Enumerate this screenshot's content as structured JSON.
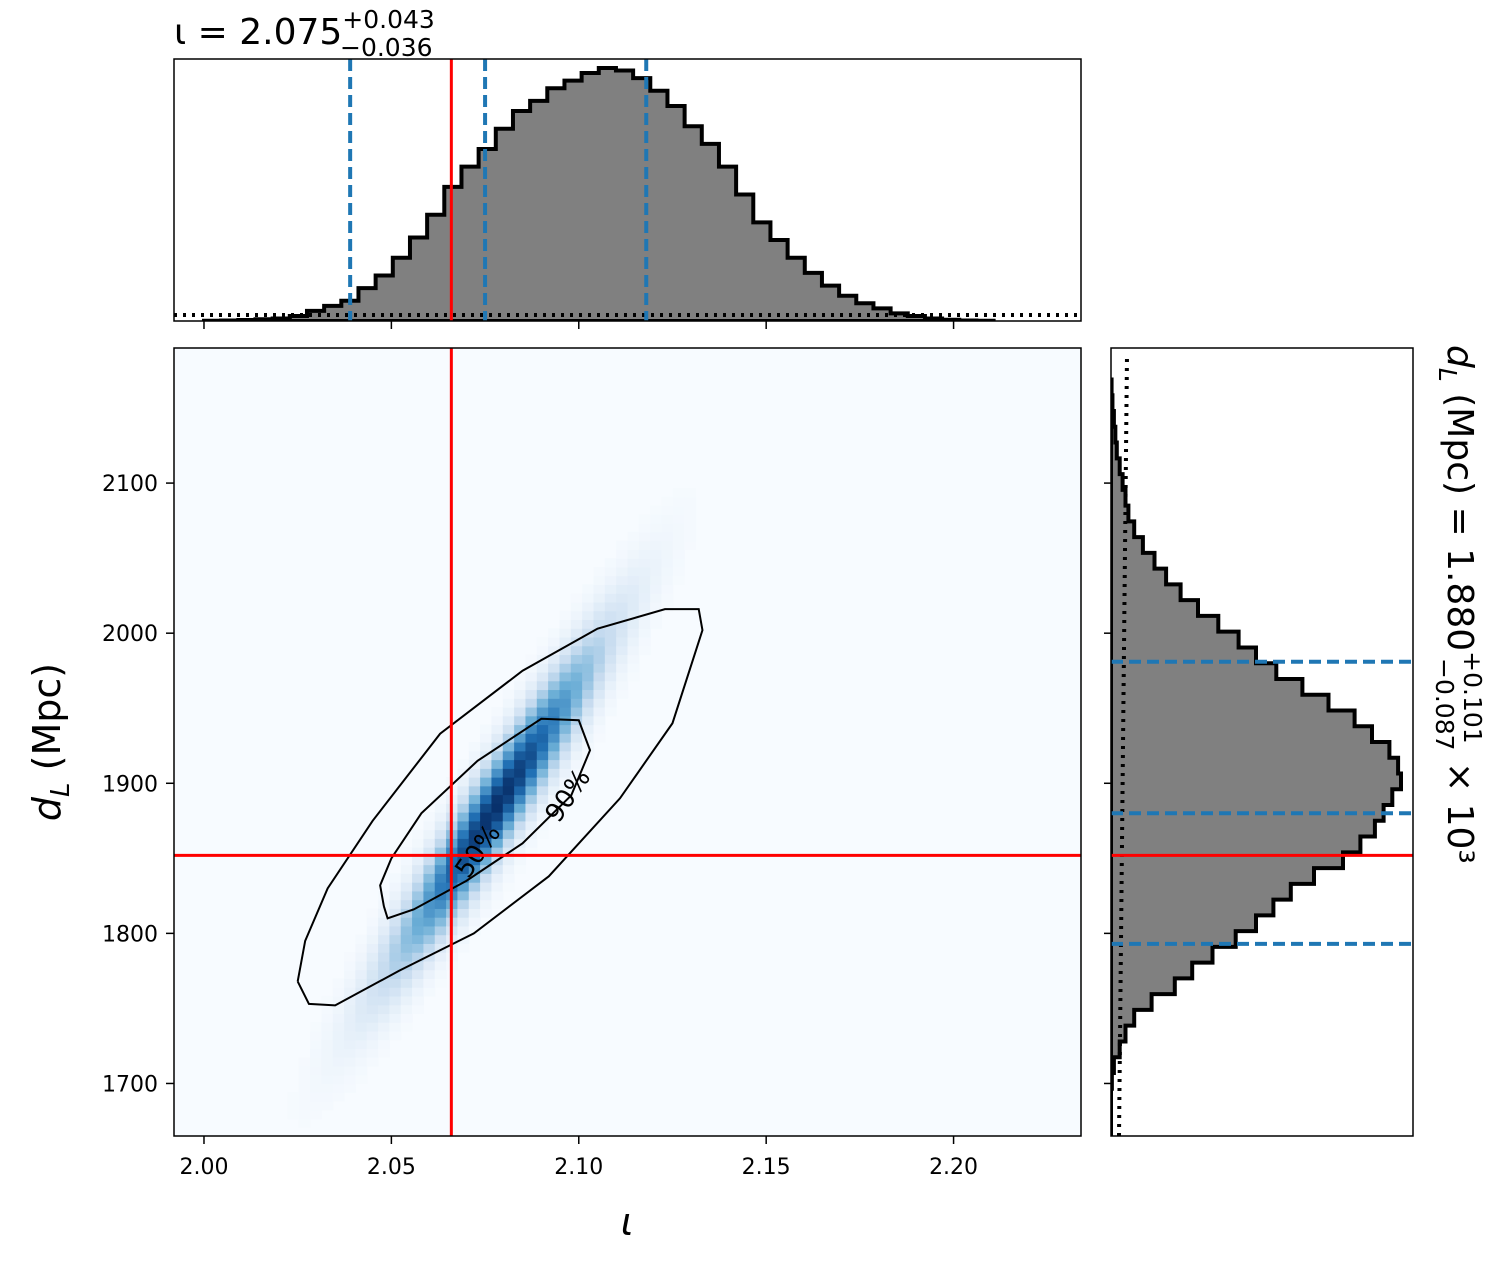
{
  "chart_data": [
    {
      "panel": "top-marginal",
      "type": "histogram",
      "title": {
        "base": "ι = 2.075",
        "sup": "+0.043",
        "sub": "−0.036"
      },
      "xlim": [
        1.992,
        2.234
      ],
      "xticks": [
        2.0,
        2.05,
        2.1,
        2.15,
        2.2
      ],
      "bins_start": 2.0,
      "bin_width": 0.00458,
      "density": [
        0.1,
        0.2,
        0.4,
        0.7,
        1,
        2,
        4,
        6,
        8,
        13,
        18,
        25,
        33,
        42,
        53,
        61,
        68,
        76,
        83,
        87,
        92,
        95,
        98,
        100,
        99,
        96,
        91,
        85,
        77,
        70,
        61,
        50,
        39,
        32,
        25,
        19,
        14,
        10,
        7,
        5,
        3,
        2,
        1,
        0.5,
        0.2,
        0.1
      ],
      "prior_level": 2.5,
      "quantile_lines": [
        2.039,
        2.075,
        2.118
      ],
      "injection": 2.066
    },
    {
      "panel": "joint",
      "type": "heatmap",
      "xlabel": "ι",
      "ylabel": "d_L (Mpc)",
      "xlim": [
        1.992,
        2.234
      ],
      "ylim": [
        1665,
        2190
      ],
      "xticks": [
        "2.00",
        "2.05",
        "2.10",
        "2.15",
        "2.20"
      ],
      "yticks": [
        "1700",
        "1800",
        "1900",
        "2000",
        "2100"
      ],
      "density": {
        "mean": [
          2.078,
          1885
        ],
        "sd": [
          0.018,
          70
        ],
        "rho": 0.95
      },
      "contours": [
        {
          "label": "50%",
          "points": [
            [
              2.048,
              1818
            ],
            [
              2.049,
              1810
            ],
            [
              2.056,
              1816
            ],
            [
              2.07,
              1835
            ],
            [
              2.085,
              1860
            ],
            [
              2.098,
              1892
            ],
            [
              2.103,
              1922
            ],
            [
              2.1,
              1942
            ],
            [
              2.09,
              1943
            ],
            [
              2.073,
              1915
            ],
            [
              2.058,
              1880
            ],
            [
              2.05,
              1850
            ],
            [
              2.047,
              1832
            ],
            [
              2.048,
              1818
            ]
          ]
        },
        {
          "label": "90%",
          "points": [
            [
              2.025,
              1768
            ],
            [
              2.028,
              1753
            ],
            [
              2.035,
              1752
            ],
            [
              2.052,
              1775
            ],
            [
              2.072,
              1800
            ],
            [
              2.092,
              1838
            ],
            [
              2.111,
              1890
            ],
            [
              2.125,
              1940
            ],
            [
              2.133,
              2002
            ],
            [
              2.132,
              2016
            ],
            [
              2.123,
              2016
            ],
            [
              2.105,
              2003
            ],
            [
              2.085,
              1975
            ],
            [
              2.063,
              1933
            ],
            [
              2.045,
              1875
            ],
            [
              2.033,
              1830
            ],
            [
              2.027,
              1795
            ],
            [
              2.025,
              1768
            ]
          ]
        }
      ],
      "contour_labels": [
        {
          "text": "50%",
          "x": 2.073,
          "y": 1855,
          "angle": -55
        },
        {
          "text": "90%",
          "x": 2.097,
          "y": 1892,
          "angle": -55
        }
      ],
      "injection": {
        "x": 2.066,
        "y": 1852
      }
    },
    {
      "panel": "right-marginal",
      "type": "histogram",
      "title": {
        "base": "d_L (Mpc) = 1.880",
        "sup": "+0.101",
        "sub": "−0.087",
        "suffix": " × 10³"
      },
      "ylim": [
        1665,
        2190
      ],
      "bins_start": 1665,
      "bin_width": 10.5,
      "density": [
        0,
        0,
        0,
        0.3,
        1,
        3,
        5,
        8,
        14,
        22,
        28,
        35,
        43,
        50,
        56,
        62,
        70,
        80,
        86,
        91,
        94,
        97,
        100,
        99,
        96,
        90,
        84,
        75,
        66,
        57,
        50,
        44,
        37,
        30,
        24,
        19,
        15,
        11,
        8,
        6,
        5,
        4,
        3,
        2,
        1.5,
        1,
        0.5,
        0.2
      ],
      "prior_level": 3,
      "quantile_lines": [
        1793,
        1880,
        1981
      ],
      "injection": 1852
    }
  ]
}
